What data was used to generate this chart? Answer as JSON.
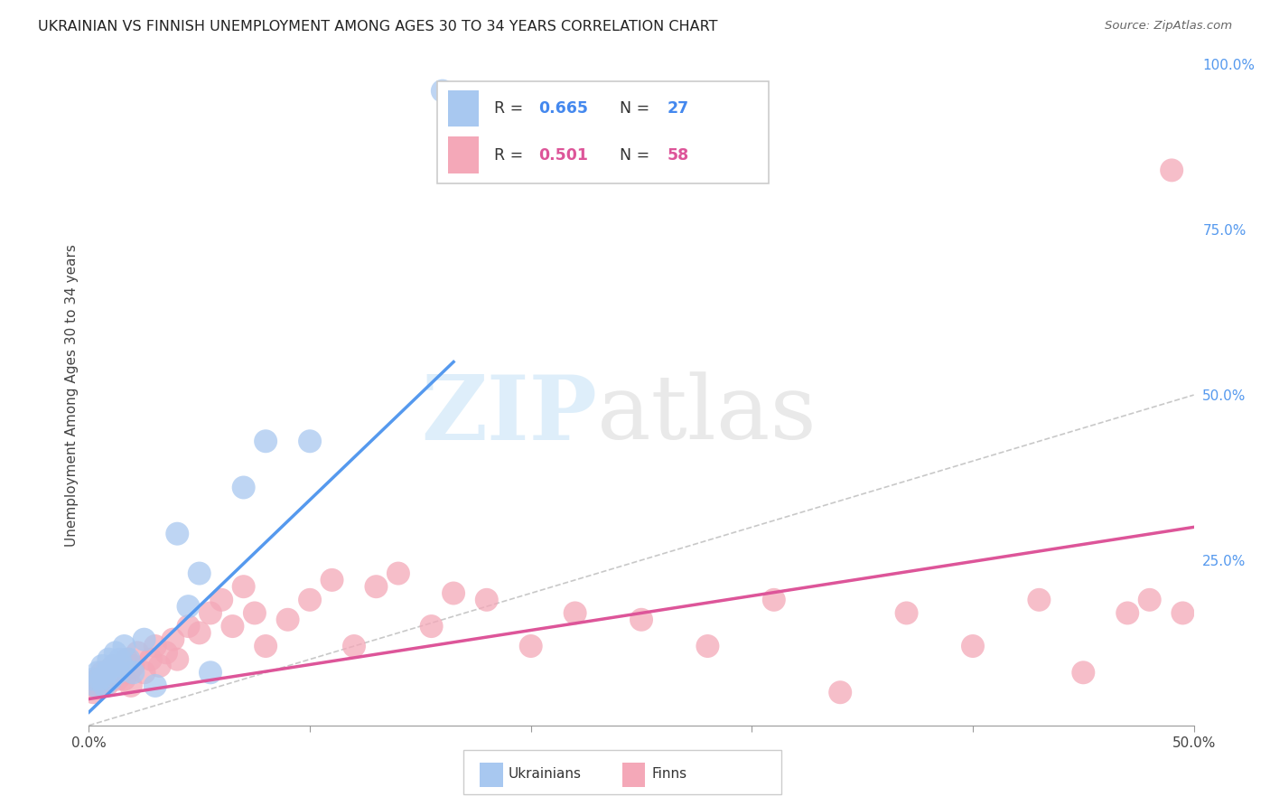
{
  "title": "UKRAINIAN VS FINNISH UNEMPLOYMENT AMONG AGES 30 TO 34 YEARS CORRELATION CHART",
  "source": "Source: ZipAtlas.com",
  "ylabel": "Unemployment Among Ages 30 to 34 years",
  "xlim": [
    0.0,
    0.5
  ],
  "ylim": [
    0.0,
    1.0
  ],
  "x_tick_positions": [
    0.0,
    0.1,
    0.2,
    0.3,
    0.4,
    0.5
  ],
  "x_tick_labels": [
    "0.0%",
    "",
    "",
    "",
    "",
    "50.0%"
  ],
  "y_tick_positions_right": [
    0.25,
    0.5,
    0.75,
    1.0
  ],
  "y_tick_labels_right": [
    "25.0%",
    "50.0%",
    "75.0%",
    "100.0%"
  ],
  "background_color": "#ffffff",
  "grid_color": "#cccccc",
  "ukr_color": "#a8c8f0",
  "finn_color": "#f4a8b8",
  "ukr_line_color": "#5599ee",
  "finn_line_color": "#dd5599",
  "diagonal_color": "#bbbbbb",
  "legend_r_color_ukr": "#4488ee",
  "legend_n_color_ukr": "#4488ee",
  "legend_r_color_finn": "#dd5599",
  "legend_n_color_finn": "#dd5599",
  "watermark_zip_color": "#c8e4f8",
  "watermark_atlas_color": "#d8d8d8",
  "ukr_scatter_x": [
    0.002,
    0.003,
    0.004,
    0.005,
    0.006,
    0.007,
    0.008,
    0.009,
    0.01,
    0.011,
    0.012,
    0.013,
    0.014,
    0.015,
    0.016,
    0.018,
    0.02,
    0.025,
    0.03,
    0.04,
    0.045,
    0.05,
    0.055,
    0.07,
    0.08,
    0.1,
    0.16
  ],
  "ukr_scatter_y": [
    0.07,
    0.06,
    0.08,
    0.07,
    0.09,
    0.06,
    0.08,
    0.1,
    0.07,
    0.09,
    0.11,
    0.08,
    0.1,
    0.09,
    0.12,
    0.1,
    0.08,
    0.13,
    0.06,
    0.29,
    0.18,
    0.23,
    0.08,
    0.36,
    0.43,
    0.43,
    0.96
  ],
  "finn_scatter_x": [
    0.002,
    0.003,
    0.004,
    0.005,
    0.006,
    0.007,
    0.008,
    0.009,
    0.01,
    0.011,
    0.012,
    0.013,
    0.014,
    0.015,
    0.016,
    0.017,
    0.018,
    0.019,
    0.02,
    0.022,
    0.025,
    0.028,
    0.03,
    0.032,
    0.035,
    0.038,
    0.04,
    0.045,
    0.05,
    0.055,
    0.06,
    0.065,
    0.07,
    0.075,
    0.08,
    0.09,
    0.1,
    0.11,
    0.12,
    0.13,
    0.14,
    0.155,
    0.165,
    0.18,
    0.2,
    0.22,
    0.25,
    0.28,
    0.31,
    0.34,
    0.37,
    0.4,
    0.43,
    0.45,
    0.47,
    0.48,
    0.49,
    0.495
  ],
  "finn_scatter_y": [
    0.05,
    0.06,
    0.07,
    0.06,
    0.08,
    0.07,
    0.06,
    0.08,
    0.07,
    0.09,
    0.08,
    0.07,
    0.09,
    0.08,
    0.07,
    0.1,
    0.08,
    0.06,
    0.09,
    0.11,
    0.08,
    0.1,
    0.12,
    0.09,
    0.11,
    0.13,
    0.1,
    0.15,
    0.14,
    0.17,
    0.19,
    0.15,
    0.21,
    0.17,
    0.12,
    0.16,
    0.19,
    0.22,
    0.12,
    0.21,
    0.23,
    0.15,
    0.2,
    0.19,
    0.12,
    0.17,
    0.16,
    0.12,
    0.19,
    0.05,
    0.17,
    0.12,
    0.19,
    0.08,
    0.17,
    0.19,
    0.84,
    0.17
  ],
  "ukr_trendline_x": [
    0.0,
    0.165
  ],
  "ukr_trendline_y": [
    0.02,
    0.55
  ],
  "finn_trendline_x": [
    0.0,
    0.5
  ],
  "finn_trendline_y": [
    0.04,
    0.3
  ]
}
